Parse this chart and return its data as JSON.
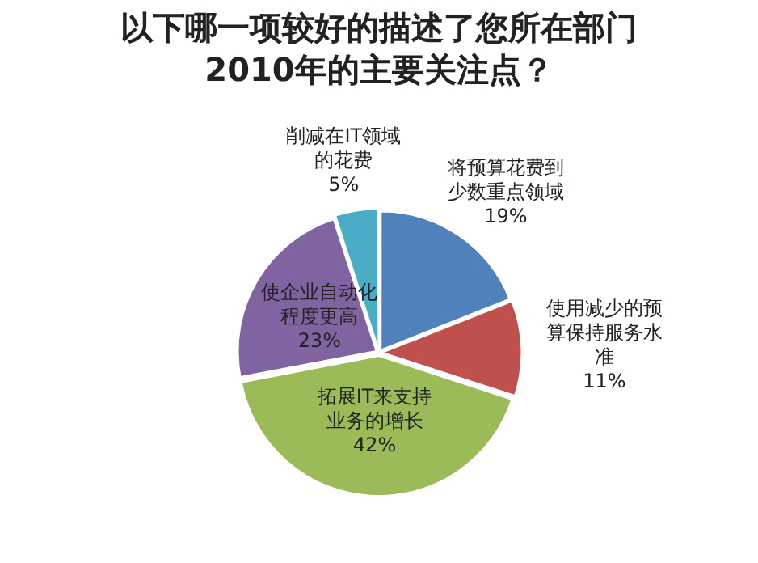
{
  "chart_data": {
    "type": "pie",
    "title": "以下哪一项较好的描述了您所在部门2010年的主要关注点？",
    "categories": [
      "将预算花费到少数重点领域",
      "使用减少的预算保持服务水准",
      "拓展IT来支持业务的增长",
      "使企业自动化程度更高",
      "削减在IT领域的花费"
    ],
    "values": [
      19,
      11,
      42,
      23,
      5
    ],
    "value_labels": [
      "19%",
      "11%",
      "42%",
      "23%",
      "5%"
    ],
    "colors": [
      "#4f81bd",
      "#c0504d",
      "#9bbb59",
      "#8064a2",
      "#4bacc6"
    ],
    "legend": false
  }
}
